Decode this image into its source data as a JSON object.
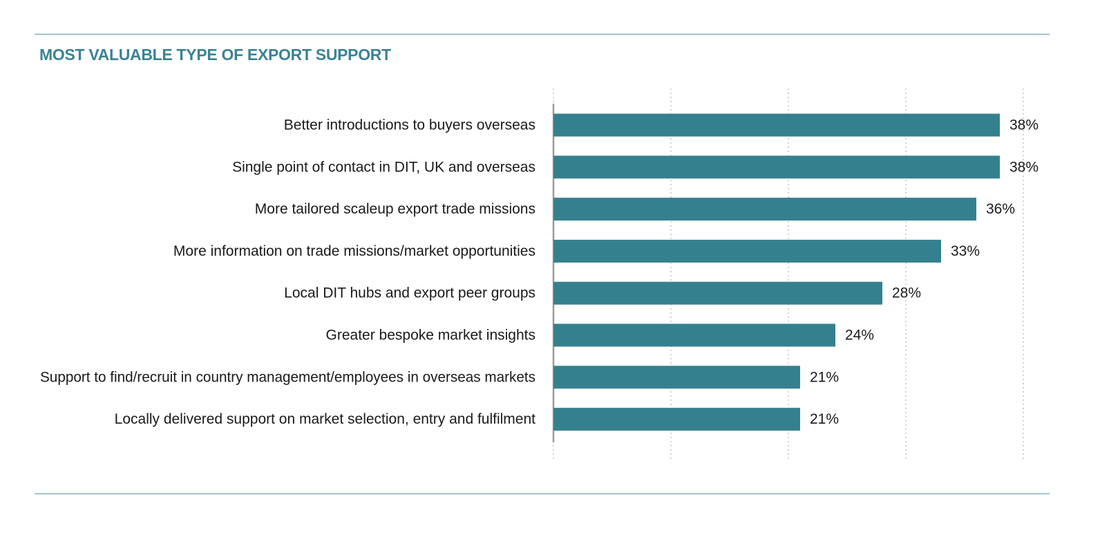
{
  "colors": {
    "accent": "#34808f",
    "bar": "#35808f",
    "rule": "#5b97a8",
    "title": "#3a8296",
    "grid": "#b5b5b5",
    "axis": "#9a9a9a"
  },
  "chart_data": {
    "type": "bar",
    "orientation": "horizontal",
    "title": "MOST VALUABLE TYPE OF EXPORT SUPPORT",
    "categories": [
      "Better introductions to buyers overseas",
      "Single point of contact in DIT, UK and overseas",
      "More tailored scaleup export trade missions",
      "More information on trade missions/market opportunities",
      "Local DIT hubs and export peer groups",
      "Greater bespoke market insights",
      "Support to find/recruit in country management/employees in overseas markets",
      "Locally delivered support on market selection, entry and fulfilment"
    ],
    "values": [
      38,
      38,
      36,
      33,
      28,
      24,
      21,
      21
    ],
    "value_labels": [
      "38%",
      "38%",
      "36%",
      "33%",
      "28%",
      "24%",
      "21%",
      "21%"
    ],
    "xlim": [
      0,
      40
    ],
    "grid_values": [
      0,
      10,
      20,
      30,
      40
    ],
    "grid": true,
    "legend": "none"
  }
}
